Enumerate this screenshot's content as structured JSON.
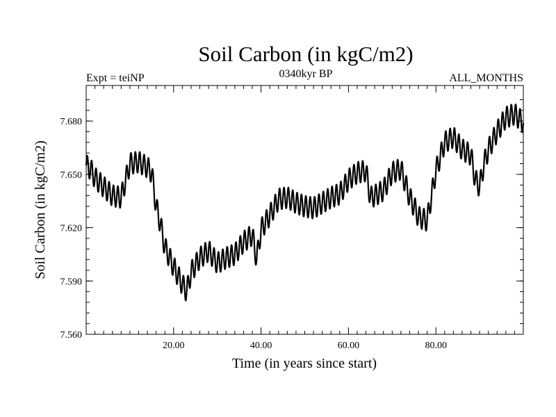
{
  "chart_data": {
    "type": "line",
    "title": "Soil Carbon (in kgC/m2)",
    "subtitle": "0340kyr BP",
    "left_label": "Expt = teiNP",
    "right_label": "ALL_MONTHS",
    "xlabel": "Time (in years since start)",
    "ylabel": "Soil Carbon (in kgC/m2)",
    "xlim": [
      0,
      100
    ],
    "ylim": [
      7.56,
      7.7
    ],
    "x_ticks": [
      20,
      40,
      60,
      80
    ],
    "x_tick_labels": [
      "20.00",
      "40.00",
      "60.00",
      "80.00"
    ],
    "y_ticks": [
      7.56,
      7.59,
      7.62,
      7.65,
      7.68
    ],
    "y_tick_labels": [
      "7.560",
      "7.590",
      "7.620",
      "7.650",
      "7.680"
    ],
    "grid": false,
    "series": [
      {
        "name": "Soil Carbon",
        "color": "#000000",
        "seasonal_amplitude": 0.006,
        "seasonal_period_years": 1,
        "trend": {
          "x": [
            0,
            1,
            2,
            4,
            6,
            8,
            10,
            12,
            14,
            15,
            16,
            17,
            18,
            20,
            22,
            23,
            24,
            26,
            28,
            30,
            32,
            34,
            36,
            38,
            39,
            40,
            42,
            44,
            46,
            48,
            50,
            52,
            54,
            56,
            58,
            60,
            62,
            64,
            65,
            66,
            68,
            70,
            72,
            74,
            75,
            76,
            78,
            80,
            82,
            84,
            86,
            88,
            89,
            90,
            91,
            92,
            94,
            96,
            98,
            100
          ],
          "y": [
            7.655,
            7.653,
            7.648,
            7.643,
            7.638,
            7.637,
            7.656,
            7.657,
            7.654,
            7.651,
            7.632,
            7.622,
            7.609,
            7.598,
            7.588,
            7.584,
            7.595,
            7.603,
            7.607,
            7.6,
            7.603,
            7.605,
            7.612,
            7.616,
            7.602,
            7.619,
            7.627,
            7.636,
            7.637,
            7.634,
            7.632,
            7.631,
            7.634,
            7.637,
            7.639,
            7.647,
            7.651,
            7.652,
            7.637,
            7.638,
            7.641,
            7.651,
            7.653,
            7.637,
            7.632,
            7.626,
            7.624,
            7.652,
            7.668,
            7.671,
            7.664,
            7.661,
            7.647,
            7.643,
            7.656,
            7.664,
            7.674,
            7.682,
            7.684,
            7.679
          ]
        }
      }
    ]
  }
}
